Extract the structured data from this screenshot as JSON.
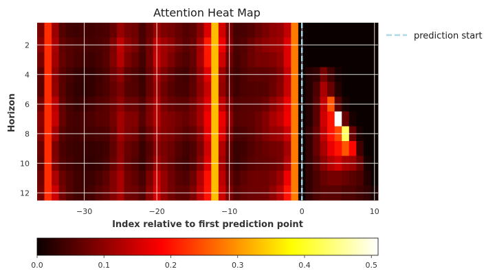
{
  "chart_data": {
    "type": "heatmap",
    "title": "Attention Heat Map",
    "xlabel": "Index relative to first prediction point",
    "ylabel": "Horizon",
    "xlim": [
      -36,
      11
    ],
    "ylim": [
      12,
      1
    ],
    "x_ticks": [
      -30,
      -20,
      -10,
      0,
      10
    ],
    "y_ticks": [
      2,
      4,
      6,
      8,
      10,
      12
    ],
    "grid": true,
    "colormap": "hot",
    "vline": {
      "x": 0,
      "label": "prediction start",
      "color": "#add8e6",
      "style": "dashed"
    },
    "legend_position": "outside-right",
    "colorbar": {
      "range": [
        0,
        0.51
      ],
      "ticks": [
        0.0,
        0.1,
        0.2,
        0.3,
        0.4,
        0.5
      ],
      "orientation": "horizontal"
    },
    "x": [
      -36,
      -35,
      -34,
      -33,
      -32,
      -31,
      -30,
      -29,
      -28,
      -27,
      -26,
      -25,
      -24,
      -23,
      -22,
      -21,
      -20,
      -19,
      -18,
      -17,
      -16,
      -15,
      -14,
      -13,
      -12,
      -11,
      -10,
      -9,
      -8,
      -7,
      -6,
      -5,
      -4,
      -3,
      -2,
      -1,
      0,
      1,
      2,
      3,
      4,
      5,
      6,
      7,
      8,
      9,
      10
    ],
    "y": [
      1,
      2,
      3,
      4,
      5,
      6,
      7,
      8,
      9,
      10,
      11,
      12
    ],
    "history_profile": [
      0.1,
      0.22,
      0.15,
      0.08,
      0.06,
      0.05,
      0.05,
      0.05,
      0.06,
      0.07,
      0.1,
      0.14,
      0.1,
      0.09,
      0.06,
      0.1,
      0.16,
      0.12,
      0.1,
      0.08,
      0.07,
      0.09,
      0.14,
      0.22,
      0.33,
      0.18,
      0.1,
      0.06,
      0.07,
      0.08,
      0.09,
      0.1,
      0.12,
      0.14,
      0.2,
      0.28,
      0.0
    ],
    "future_values": {
      "rows": [
        4,
        5,
        6,
        7,
        8,
        9,
        10,
        11,
        12
      ],
      "x_start": 1,
      "values": [
        [
          0.02,
          0.03,
          0.08,
          0.04,
          0.01,
          0.0,
          0.0,
          0.0,
          0.0,
          0.0
        ],
        [
          0.02,
          0.05,
          0.12,
          0.07,
          0.02,
          0.0,
          0.0,
          0.0,
          0.0,
          0.0
        ],
        [
          0.02,
          0.06,
          0.14,
          0.25,
          0.06,
          0.01,
          0.0,
          0.0,
          0.0,
          0.0
        ],
        [
          0.02,
          0.06,
          0.15,
          0.2,
          0.51,
          0.07,
          0.01,
          0.0,
          0.0,
          0.0
        ],
        [
          0.03,
          0.07,
          0.14,
          0.2,
          0.24,
          0.43,
          0.07,
          0.01,
          0.0,
          0.0
        ],
        [
          0.03,
          0.07,
          0.12,
          0.17,
          0.2,
          0.25,
          0.19,
          0.04,
          0.0,
          0.0
        ],
        [
          0.03,
          0.06,
          0.1,
          0.13,
          0.15,
          0.12,
          0.11,
          0.07,
          0.01,
          0.0
        ],
        [
          0.03,
          0.05,
          0.07,
          0.08,
          0.08,
          0.07,
          0.06,
          0.05,
          0.02,
          0.0
        ],
        [
          0.03,
          0.05,
          0.06,
          0.06,
          0.06,
          0.05,
          0.05,
          0.04,
          0.03,
          0.01
        ]
      ]
    }
  }
}
